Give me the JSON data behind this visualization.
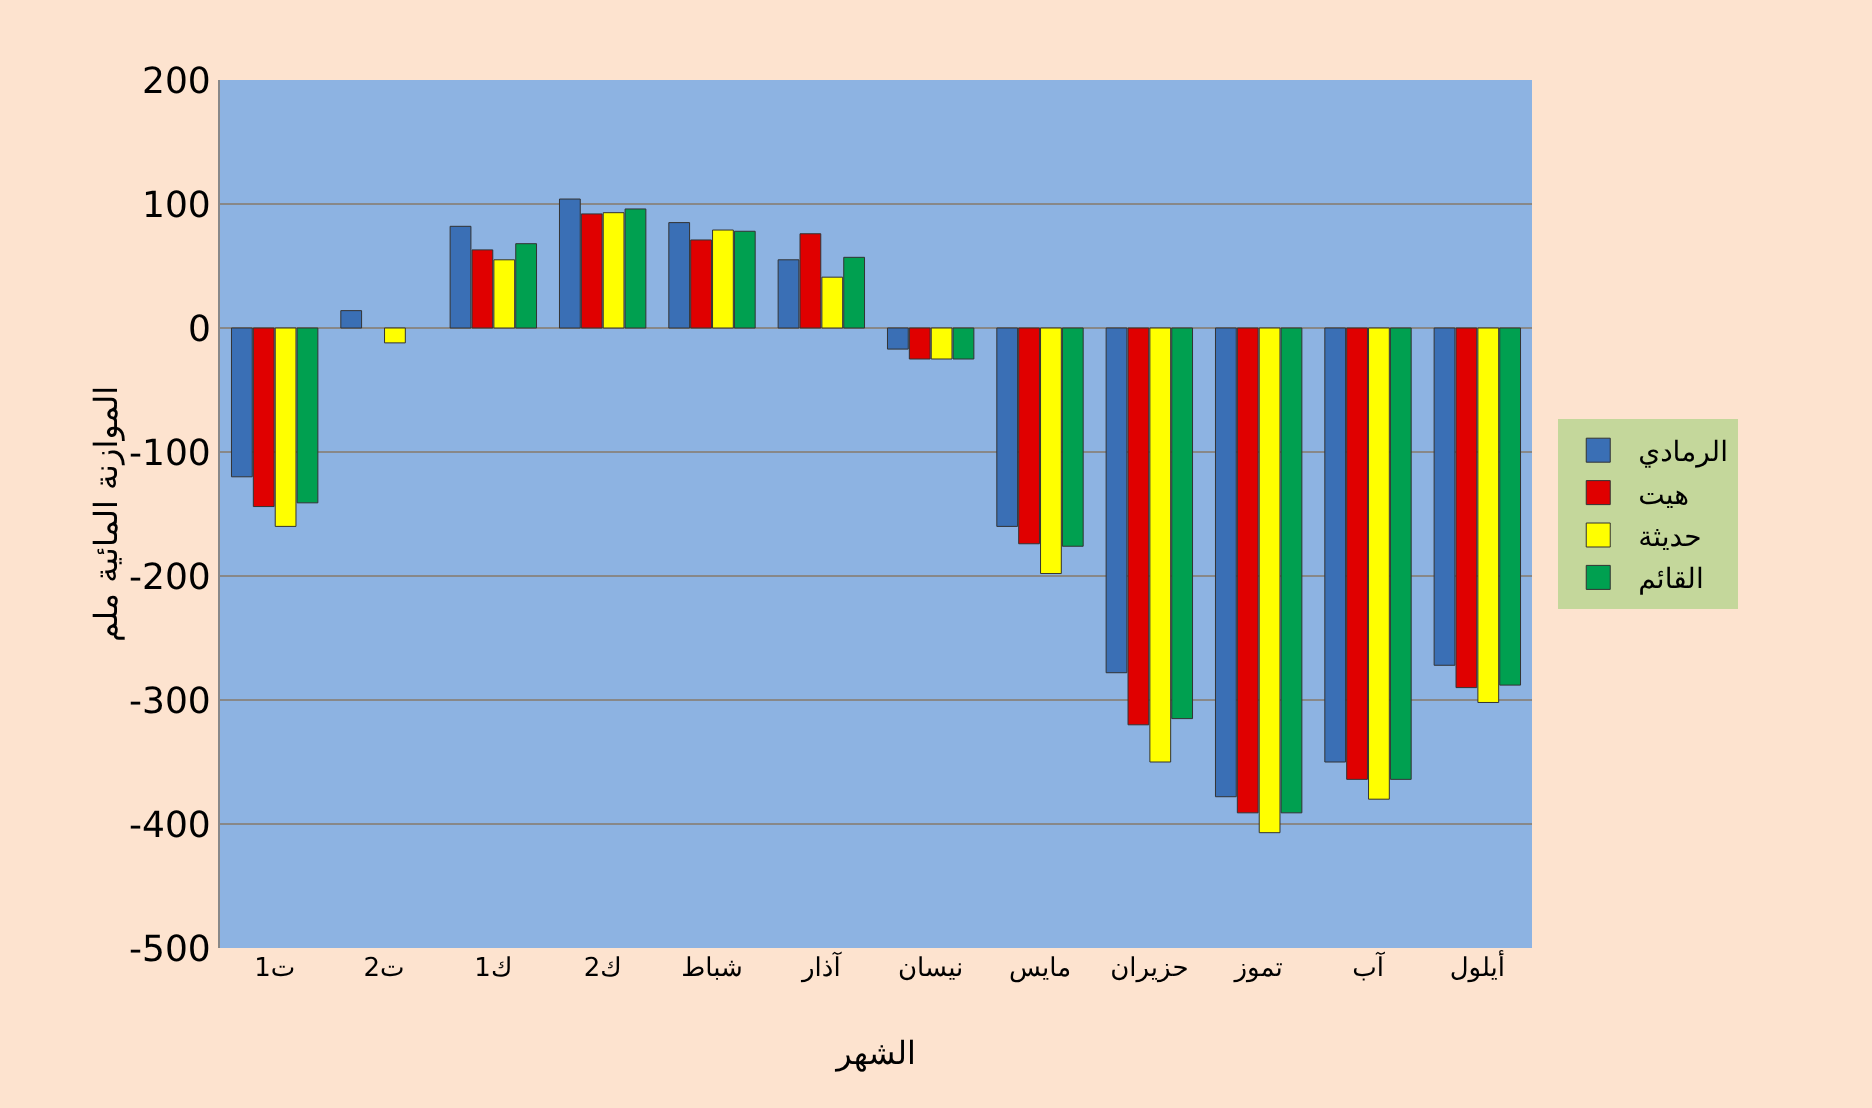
{
  "chart_data": {
    "type": "bar",
    "xlabel": "الشهر",
    "ylabel": "الموازنة المائية ملم",
    "categories": [
      "ت1",
      "ت2",
      "ك1",
      "ك2",
      "شباط",
      "آذار",
      "نيسان",
      "مايس",
      "حزيران",
      "تموز",
      "آب",
      "أيلول"
    ],
    "series": [
      {
        "name": "الرمادي",
        "color": "#3a6fb5",
        "values": [
          -120,
          14,
          82,
          104,
          85,
          55,
          -17,
          -160,
          -278,
          -378,
          -350,
          -272
        ]
      },
      {
        "name": "هيت",
        "color": "#e00000",
        "values": [
          -144,
          null,
          63,
          92,
          71,
          76,
          -25,
          -174,
          -320,
          -391,
          -364,
          -290
        ]
      },
      {
        "name": "حديثة",
        "color": "#ffff00",
        "values": [
          -160,
          -12,
          55,
          93,
          79,
          41,
          -25,
          -198,
          -350,
          -407,
          -380,
          -302
        ]
      },
      {
        "name": "القائم",
        "color": "#00a050",
        "values": [
          -141,
          null,
          68,
          96,
          78,
          57,
          -25,
          -176,
          -315,
          -391,
          -364,
          -288
        ]
      }
    ],
    "ylim": [
      -500,
      200
    ],
    "yticks": [
      -500,
      -400,
      -300,
      -200,
      -100,
      0,
      100,
      200
    ],
    "grid": "y",
    "legend": "right"
  }
}
